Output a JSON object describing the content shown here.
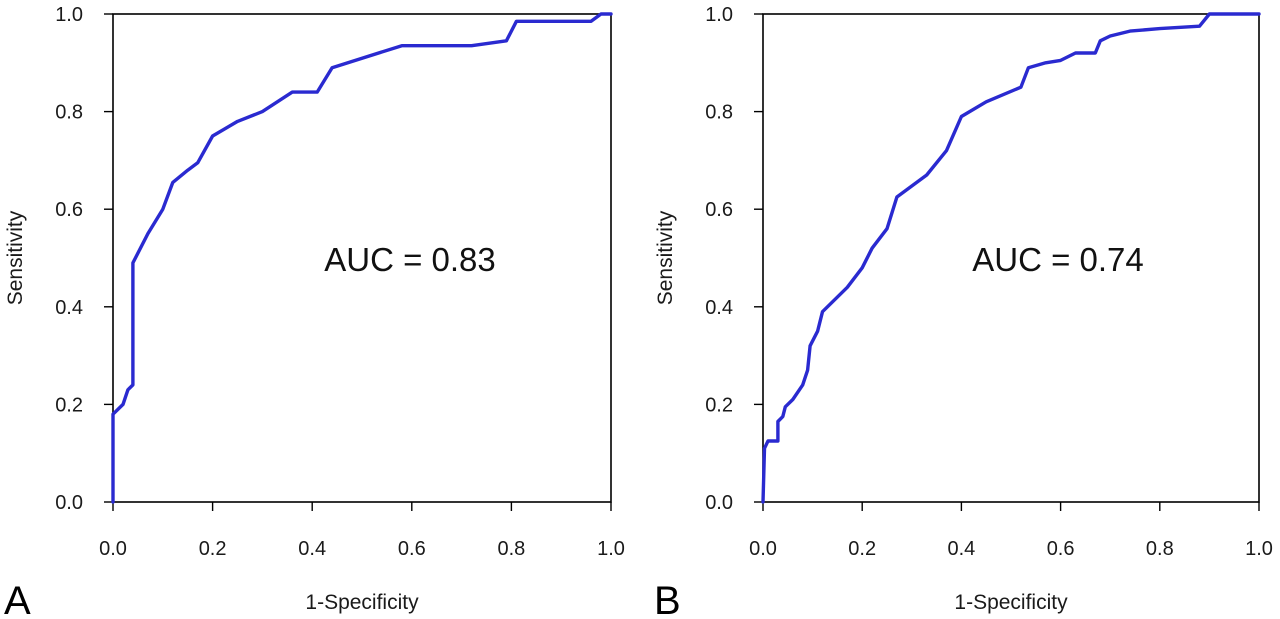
{
  "chart_data": [
    {
      "type": "line",
      "panel_label": "A",
      "xlabel": "1-Specificity",
      "ylabel": "Sensitivity",
      "xlim": [
        0,
        1
      ],
      "ylim": [
        0,
        1
      ],
      "xticks": [
        "0.0",
        "0.2",
        "0.4",
        "0.6",
        "0.8",
        "1.0"
      ],
      "yticks": [
        "0.0",
        "0.2",
        "0.4",
        "0.6",
        "0.8",
        "1.0"
      ],
      "grid": false,
      "annotation": "AUC = 0.83",
      "line_color": "#2a2ad0",
      "series": [
        {
          "x": [
            0,
            0,
            0.02,
            0.03,
            0.04,
            0.04,
            0.07,
            0.1,
            0.12,
            0.15,
            0.17,
            0.2,
            0.25,
            0.3,
            0.36,
            0.41,
            0.44,
            0.58,
            0.72,
            0.79,
            0.81,
            0.96,
            0.98,
            1.0
          ],
          "y": [
            0,
            0.18,
            0.2,
            0.23,
            0.24,
            0.49,
            0.55,
            0.6,
            0.655,
            0.68,
            0.695,
            0.75,
            0.78,
            0.8,
            0.84,
            0.84,
            0.89,
            0.935,
            0.935,
            0.945,
            0.985,
            0.985,
            1.0,
            1.0
          ]
        }
      ]
    },
    {
      "type": "line",
      "panel_label": "B",
      "xlabel": "1-Specificity",
      "ylabel": "Sensitivity",
      "xlim": [
        0,
        1
      ],
      "ylim": [
        0,
        1
      ],
      "xticks": [
        "0.0",
        "0.2",
        "0.4",
        "0.6",
        "0.8",
        "1.0"
      ],
      "yticks": [
        "0.0",
        "0.2",
        "0.4",
        "0.6",
        "0.8",
        "1.0"
      ],
      "grid": false,
      "annotation": "AUC = 0.74",
      "line_color": "#2a2ad0",
      "series": [
        {
          "x": [
            0,
            0.003,
            0.01,
            0.02,
            0.03,
            0.03,
            0.04,
            0.045,
            0.06,
            0.08,
            0.09,
            0.095,
            0.11,
            0.12,
            0.17,
            0.2,
            0.22,
            0.25,
            0.27,
            0.33,
            0.37,
            0.4,
            0.45,
            0.52,
            0.535,
            0.57,
            0.6,
            0.63,
            0.67,
            0.68,
            0.7,
            0.74,
            0.8,
            0.88,
            0.9,
            0.92,
            1.0
          ],
          "y": [
            0,
            0.11,
            0.125,
            0.125,
            0.125,
            0.165,
            0.175,
            0.195,
            0.21,
            0.24,
            0.27,
            0.32,
            0.35,
            0.39,
            0.44,
            0.48,
            0.52,
            0.56,
            0.625,
            0.67,
            0.72,
            0.79,
            0.82,
            0.85,
            0.89,
            0.9,
            0.905,
            0.92,
            0.92,
            0.945,
            0.955,
            0.965,
            0.97,
            0.975,
            1.0,
            1.0,
            1.0
          ]
        }
      ]
    }
  ]
}
